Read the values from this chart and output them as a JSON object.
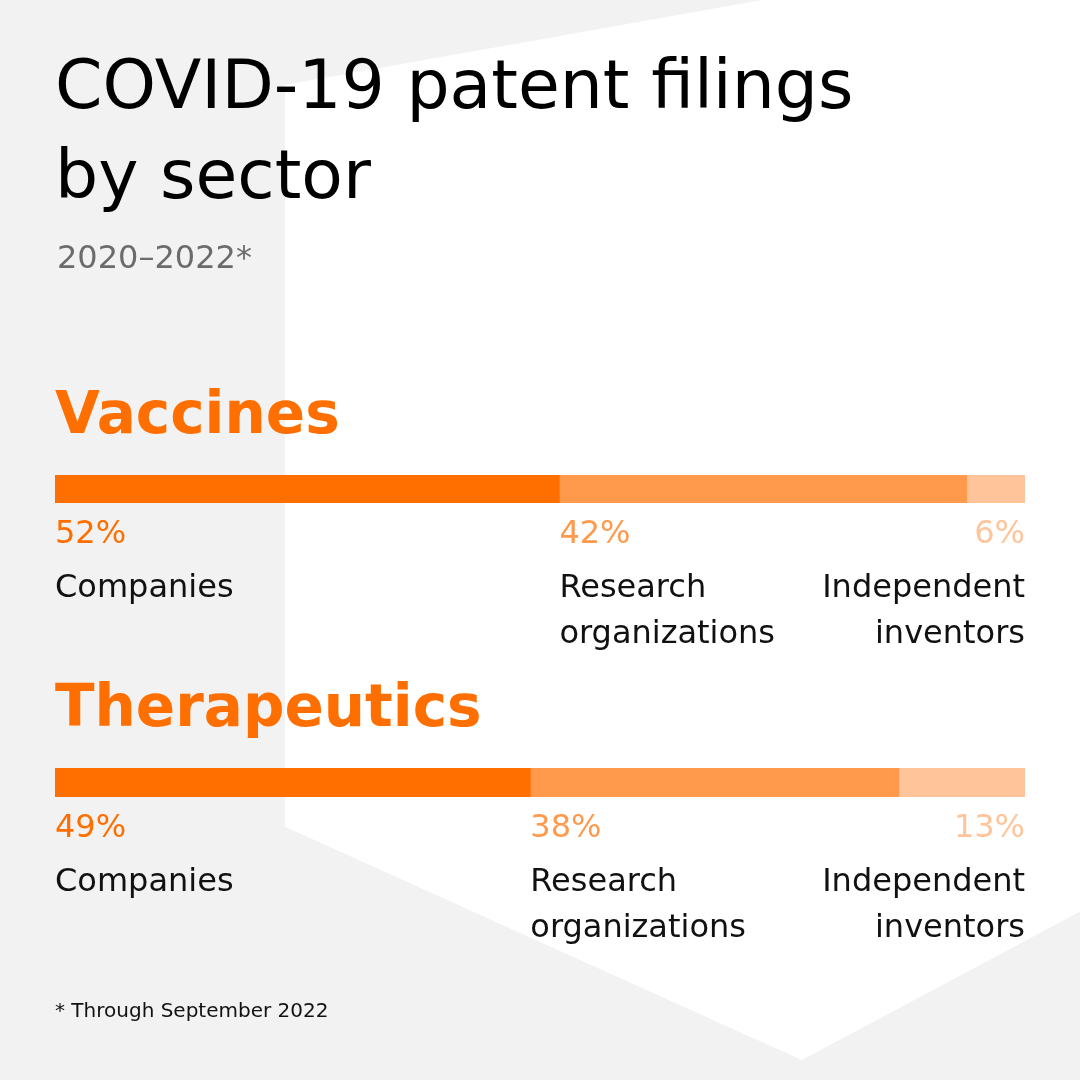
{
  "chart_data": [
    {
      "type": "other",
      "title": "COVID-19 patent filings by sector",
      "subtitle": "2020–2022*"
    },
    {
      "type": "bar",
      "orientation": "horizontal",
      "stacked": true,
      "title": "Vaccines",
      "categories": [
        null
      ],
      "tick_labels": false,
      "series": [
        {
          "name": "Companies",
          "color": "#ff6f00",
          "values": [
            52
          ],
          "value_labels": [
            "52%"
          ]
        },
        {
          "name": "Research organizations",
          "color": "#ff9a4d",
          "values": [
            42
          ],
          "value_labels": [
            "42%"
          ]
        },
        {
          "name": "Independent inventors",
          "color": "#ffc49a",
          "values": [
            6
          ],
          "value_labels": [
            "6%"
          ]
        }
      ]
    },
    {
      "type": "bar",
      "orientation": "horizontal",
      "stacked": true,
      "title": "Therapeutics",
      "categories": [
        null
      ],
      "tick_labels": false,
      "annotations": [
        "* Through September 2022"
      ],
      "series": [
        {
          "name": "Companies",
          "color": "#ff6f00",
          "values": [
            49
          ],
          "value_labels": [
            "49%"
          ]
        },
        {
          "name": "Research organizations",
          "color": "#ff9a4d",
          "values": [
            38
          ],
          "value_labels": [
            "38%"
          ]
        },
        {
          "name": "Independent inventors",
          "color": "#ffc49a",
          "values": [
            13
          ],
          "value_labels": [
            "13%"
          ]
        }
      ]
    }
  ]
}
